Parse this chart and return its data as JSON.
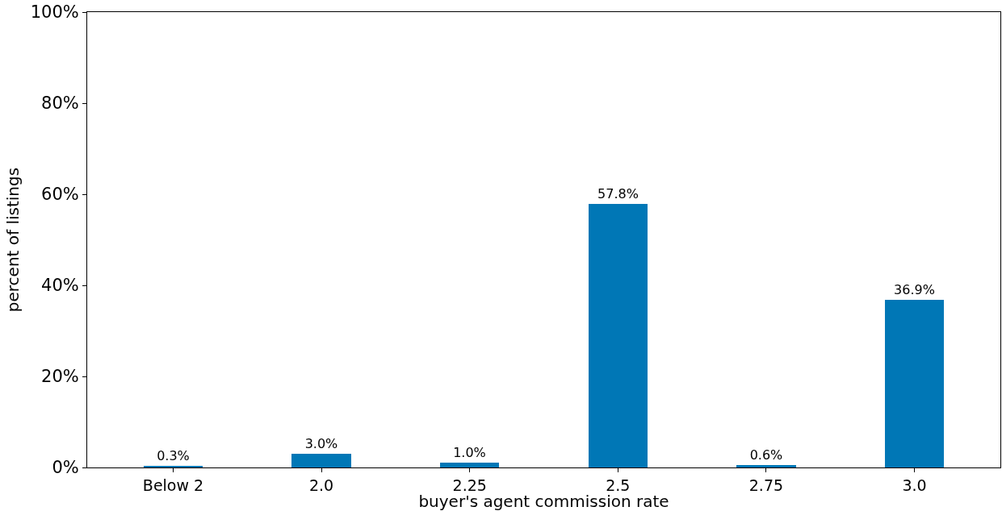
{
  "chart_data": {
    "type": "bar",
    "xlabel": "buyer's agent commission rate",
    "ylabel": "percent of listings",
    "categories": [
      "Below 2",
      "2.0",
      "2.25",
      "2.5",
      "2.75",
      "3.0"
    ],
    "values": [
      0.3,
      3.0,
      1.0,
      57.8,
      0.6,
      36.9
    ],
    "value_labels": [
      "0.3%",
      "3.0%",
      "1.0%",
      "57.8%",
      "0.6%",
      "36.9%"
    ],
    "color": "#0077b6",
    "ylim": [
      0,
      100
    ],
    "yticks": [
      {
        "value": 0,
        "label": "0%"
      },
      {
        "value": 20,
        "label": "20%"
      },
      {
        "value": 40,
        "label": "40%"
      },
      {
        "value": 60,
        "label": "60%"
      },
      {
        "value": 80,
        "label": "80%"
      },
      {
        "value": 100,
        "label": "100%"
      }
    ],
    "grid": false
  }
}
